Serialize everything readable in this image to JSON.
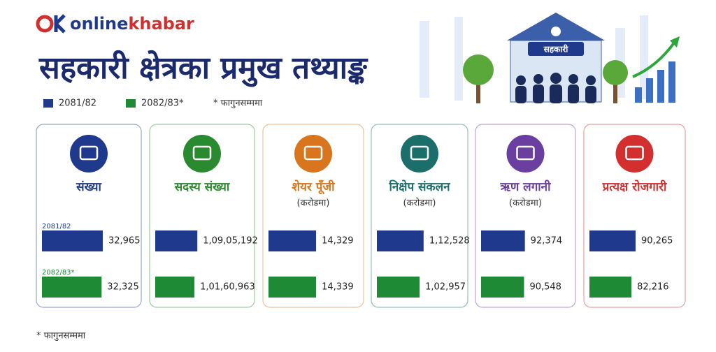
{
  "logo": {
    "part1": "online",
    "part2": "khabar"
  },
  "title": "सहकारी क्षेत्रका प्रमुख तथ्याङ्क",
  "illustration_label": "सहकारी",
  "legend": [
    {
      "name": "2081/82",
      "color": "#1f3a8c"
    },
    {
      "name": "2082/83*",
      "color": "#1e8a36"
    }
  ],
  "legend_note": "* फागुनसम्ममा",
  "footnote": "* फागुनसम्ममा",
  "chart_data": [
    {
      "type": "bar",
      "title": "संख्या",
      "title_color": "#1f3a8c",
      "categories": [
        "2081/82",
        "2082/83*"
      ],
      "values": [
        32965,
        32325
      ],
      "value_labels": [
        "32,965",
        "32,325"
      ],
      "colors": [
        "#1f3a8c",
        "#1e8a36"
      ],
      "xlim": [
        0,
        36000
      ]
    },
    {
      "type": "bar",
      "title": "सदस्य संख्या",
      "title_color": "#2a8a2f",
      "categories": [
        null,
        null
      ],
      "values": [
        10905192,
        10160963
      ],
      "value_labels": [
        "1,09,05,192",
        "1,01,60,963"
      ],
      "colors": [
        "#1f3a8c",
        "#1e8a36"
      ],
      "xlim": [
        0,
        17200000
      ]
    },
    {
      "type": "bar",
      "title": "शेयर पूँजी",
      "subtitle": "(करोडमा)",
      "title_color": "#d9751c",
      "categories": [
        null,
        null
      ],
      "values": [
        14329,
        14339
      ],
      "value_labels": [
        "14,329",
        "14,339"
      ],
      "colors": [
        "#1f3a8c",
        "#1e8a36"
      ],
      "xlim": [
        0,
        20000
      ]
    },
    {
      "type": "bar",
      "title": "निक्षेप संकलन",
      "subtitle": "(करोडमा)",
      "title_color": "#1b6e6a",
      "categories": [
        null,
        null
      ],
      "values": [
        112528,
        102957
      ],
      "value_labels": [
        "1,12,528",
        "1,02,957"
      ],
      "colors": [
        "#1f3a8c",
        "#1e8a36"
      ],
      "xlim": [
        0,
        160000
      ]
    },
    {
      "type": "bar",
      "title": "ऋण लगानी",
      "subtitle": "(करोडमा)",
      "title_color": "#6a3fa0",
      "categories": [
        null,
        null
      ],
      "values": [
        92374,
        90548
      ],
      "value_labels": [
        "92,374",
        "90,548"
      ],
      "colors": [
        "#1f3a8c",
        "#1e8a36"
      ],
      "xlim": [
        0,
        140000
      ]
    },
    {
      "type": "bar",
      "title": "प्रत्यक्ष रोजगारी",
      "title_color": "#d32f2f",
      "categories": [
        null,
        null
      ],
      "values": [
        90265,
        82216
      ],
      "value_labels": [
        "90,265",
        "82,216"
      ],
      "colors": [
        "#1f3a8c",
        "#1e8a36"
      ],
      "xlim": [
        0,
        130000
      ]
    }
  ]
}
